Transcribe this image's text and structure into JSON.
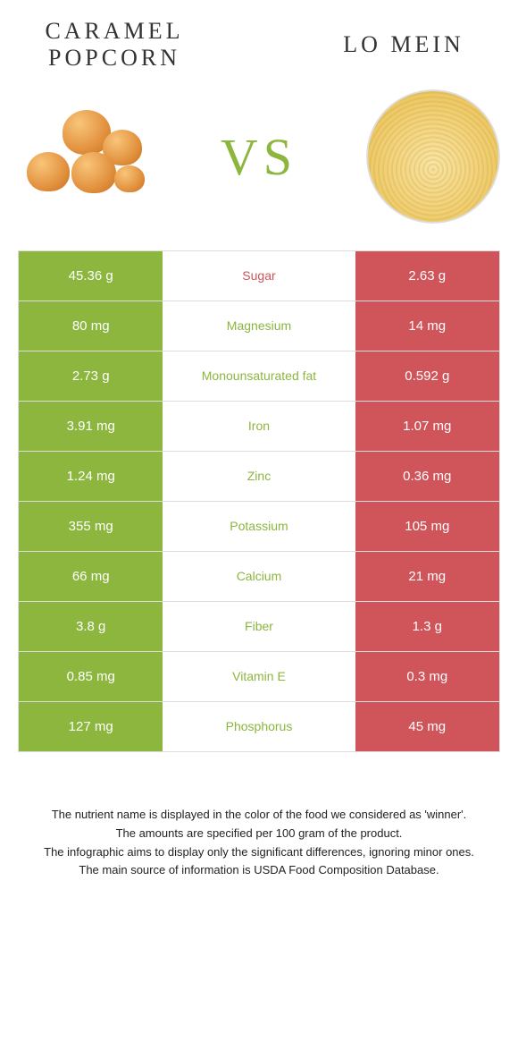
{
  "foods": {
    "left": {
      "name": "CARAMEL POPCORN"
    },
    "right": {
      "name": "LO MEIN"
    }
  },
  "vs_label": "VS",
  "colors": {
    "left_bar": "#8cb63e",
    "right_bar": "#d0555a",
    "nutrient_left_winner": "#d0555a",
    "nutrient_right_winner": "#8cb63e"
  },
  "nutrients": [
    {
      "label": "Sugar",
      "left": "45.36 g",
      "right": "2.63 g",
      "winner": "left"
    },
    {
      "label": "Magnesium",
      "left": "80 mg",
      "right": "14 mg",
      "winner": "right"
    },
    {
      "label": "Monounsaturated fat",
      "left": "2.73 g",
      "right": "0.592 g",
      "winner": "right"
    },
    {
      "label": "Iron",
      "left": "3.91 mg",
      "right": "1.07 mg",
      "winner": "right"
    },
    {
      "label": "Zinc",
      "left": "1.24 mg",
      "right": "0.36 mg",
      "winner": "right"
    },
    {
      "label": "Potassium",
      "left": "355 mg",
      "right": "105 mg",
      "winner": "right"
    },
    {
      "label": "Calcium",
      "left": "66 mg",
      "right": "21 mg",
      "winner": "right"
    },
    {
      "label": "Fiber",
      "left": "3.8 g",
      "right": "1.3 g",
      "winner": "right"
    },
    {
      "label": "Vitamin E",
      "left": "0.85 mg",
      "right": "0.3 mg",
      "winner": "right"
    },
    {
      "label": "Phosphorus",
      "left": "127 mg",
      "right": "45 mg",
      "winner": "right"
    }
  ],
  "footer_lines": [
    "The nutrient name is displayed in the color of the food we considered as 'winner'.",
    "The amounts are specified per 100 gram of the product.",
    "The infographic aims to display only the significant differences, ignoring minor ones.",
    "The main source of information is USDA Food Composition Database."
  ]
}
